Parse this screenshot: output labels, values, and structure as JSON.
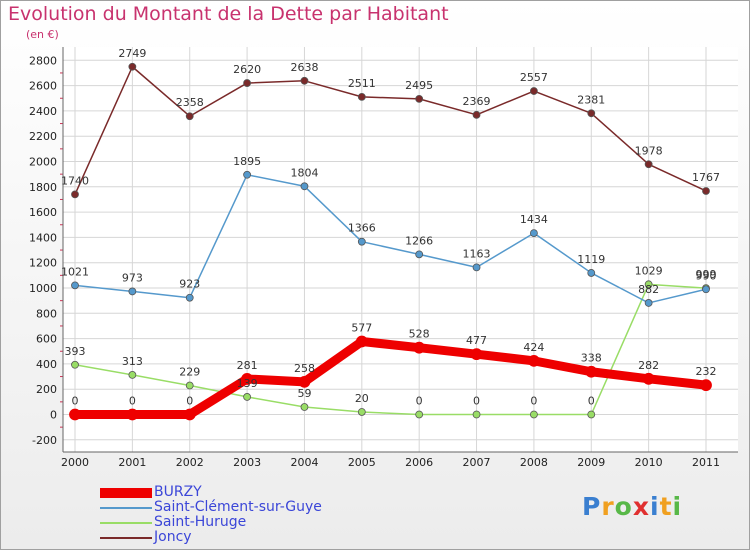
{
  "title": "Evolution du Montant de la Dette par Habitant",
  "unit_label": "(en €)",
  "logo": {
    "letters": [
      "P",
      "r",
      "o",
      "x",
      "i",
      "t",
      "i"
    ],
    "colors": [
      "#3a7fd0",
      "#f0a020",
      "#58b848",
      "#e03030",
      "#3a7fd0",
      "#f0a020",
      "#58b848"
    ]
  },
  "chart_data": {
    "type": "line",
    "x": [
      "2000",
      "2001",
      "2002",
      "2003",
      "2004",
      "2005",
      "2006",
      "2007",
      "2008",
      "2009",
      "2010",
      "2011"
    ],
    "ylim": [
      -200,
      2800
    ],
    "yticks": [
      "-200",
      "0",
      "200",
      "400",
      "600",
      "800",
      "1000",
      "1200",
      "1400",
      "1600",
      "1800",
      "2000",
      "2200",
      "2400",
      "2600",
      "2800"
    ],
    "grid": true,
    "legend_position": "bottom-left",
    "series": [
      {
        "name": "BURZY",
        "color": "#ee0000",
        "values": [
          0,
          0,
          0,
          281,
          258,
          577,
          528,
          477,
          424,
          338,
          282,
          232
        ],
        "labels": [
          "0",
          "0",
          "0",
          "281",
          "258",
          "577",
          "528",
          "477",
          "424",
          "338",
          "282",
          "232"
        ]
      },
      {
        "name": "Saint-Clément-sur-Guye",
        "color": "#5599cc",
        "values": [
          1021,
          973,
          923,
          1895,
          1804,
          1366,
          1266,
          1163,
          1434,
          1119,
          882,
          990
        ],
        "labels": [
          "1021",
          "973",
          "923",
          "1895",
          "1804",
          "1366",
          "1266",
          "1163",
          "1434",
          "1119",
          "882",
          "990"
        ]
      },
      {
        "name": "Saint-Huruge",
        "color": "#99dd66",
        "values": [
          393,
          313,
          229,
          139,
          59,
          20,
          0,
          0,
          0,
          0,
          1029,
          999
        ],
        "labels": [
          "393",
          "313",
          "229",
          "139",
          "59",
          "20",
          "0",
          "0",
          "0",
          "0",
          "1029",
          "999"
        ]
      },
      {
        "name": "Joncy",
        "color": "#7a2a2a",
        "values": [
          1740,
          2749,
          2358,
          2620,
          2638,
          2511,
          2495,
          2369,
          2557,
          2381,
          1978,
          1767
        ],
        "labels": [
          "1740",
          "2749",
          "2358",
          "2620",
          "2638",
          "2511",
          "2495",
          "2369",
          "2557",
          "2381",
          "1978",
          "1767"
        ]
      }
    ]
  }
}
